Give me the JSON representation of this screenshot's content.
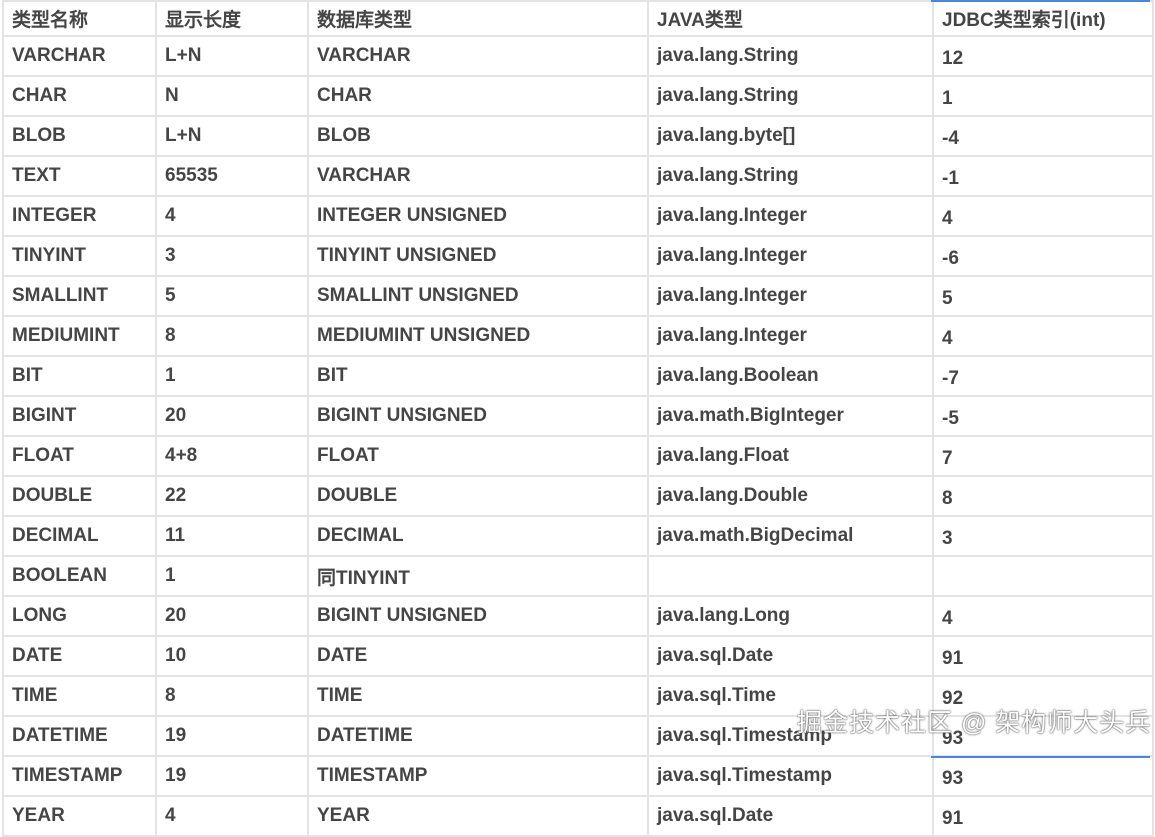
{
  "columns": [
    "类型名称",
    "显示长度",
    "数据库类型",
    "JAVA类型",
    "JDBC类型索引(int)"
  ],
  "rows": [
    [
      "VARCHAR",
      "L+N",
      "VARCHAR",
      "java.lang.String",
      "12"
    ],
    [
      "CHAR",
      "N",
      "CHAR",
      "java.lang.String",
      "1"
    ],
    [
      "BLOB",
      "L+N",
      "BLOB",
      "java.lang.byte[]",
      "-4"
    ],
    [
      "TEXT",
      "65535",
      "VARCHAR",
      "java.lang.String",
      "-1"
    ],
    [
      "INTEGER",
      "4",
      "INTEGER UNSIGNED",
      "java.lang.Integer",
      "4"
    ],
    [
      "TINYINT",
      "3",
      "TINYINT UNSIGNED",
      "java.lang.Integer",
      "-6"
    ],
    [
      "SMALLINT",
      "5",
      "SMALLINT UNSIGNED",
      "java.lang.Integer",
      "5"
    ],
    [
      "MEDIUMINT",
      "8",
      "MEDIUMINT UNSIGNED",
      "java.lang.Integer",
      "4"
    ],
    [
      "BIT",
      "1",
      "BIT",
      "java.lang.Boolean",
      "-7"
    ],
    [
      "BIGINT",
      "20",
      "BIGINT UNSIGNED",
      "java.math.BigInteger",
      "-5"
    ],
    [
      "FLOAT",
      "4+8",
      "FLOAT",
      "java.lang.Float",
      "7"
    ],
    [
      "DOUBLE",
      "22",
      "DOUBLE",
      "java.lang.Double",
      "8"
    ],
    [
      "DECIMAL",
      "11",
      "DECIMAL",
      "java.math.BigDecimal",
      "3"
    ],
    [
      "BOOLEAN",
      "1",
      "同TINYINT",
      "",
      ""
    ],
    [
      "LONG",
      "20",
      "BIGINT UNSIGNED",
      "java.lang.Long",
      "4"
    ],
    [
      "DATE",
      "10",
      "DATE",
      "java.sql.Date",
      "91"
    ],
    [
      "TIME",
      "8",
      "TIME",
      "java.sql.Time",
      "92"
    ],
    [
      "DATETIME",
      "19",
      "DATETIME",
      "java.sql.Timestamp",
      "93"
    ],
    [
      "TIMESTAMP",
      "19",
      "TIMESTAMP",
      "java.sql.Timestamp",
      "93"
    ],
    [
      "YEAR",
      "4",
      "YEAR",
      "java.sql.Date",
      "91"
    ]
  ],
  "watermark": "掘金技术社区 @ 架构师大头兵",
  "colors": {
    "text": "#454545",
    "grid": "#e3e3e3",
    "selection": "#4a86d8"
  }
}
